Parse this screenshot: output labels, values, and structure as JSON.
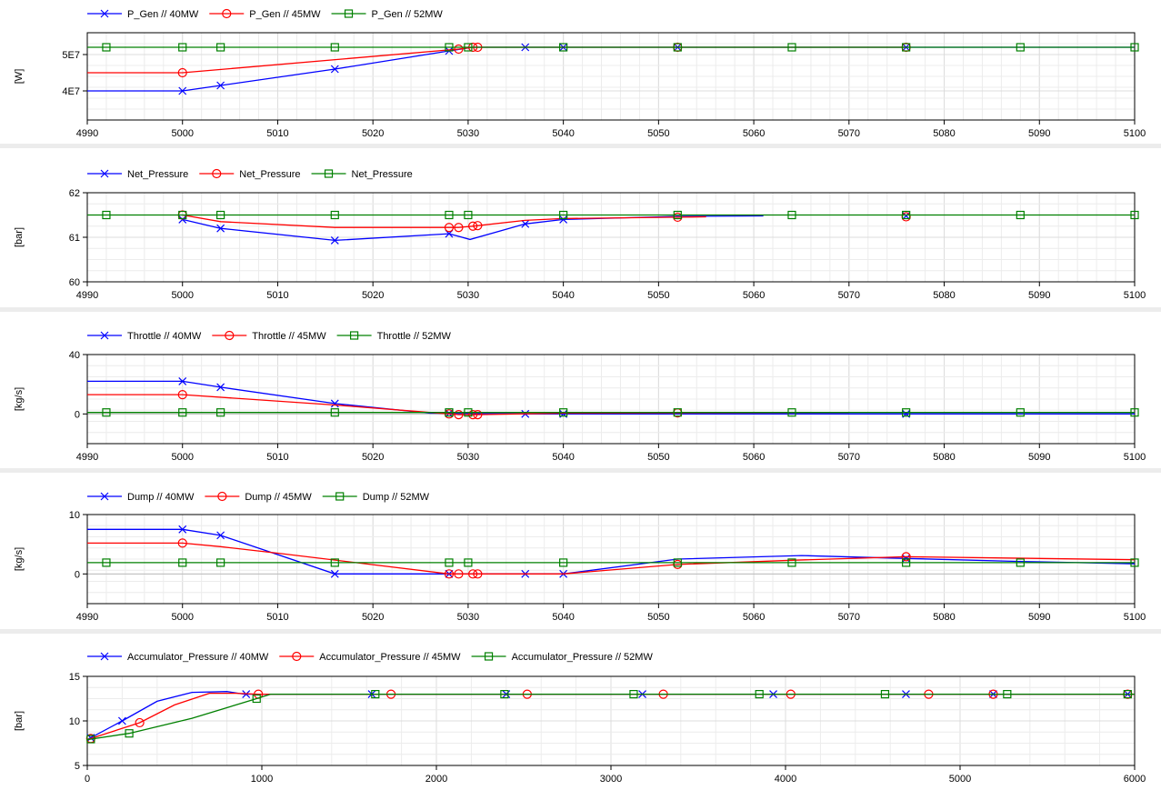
{
  "colors": {
    "blue": "#0000ff",
    "red": "#ff0000",
    "green": "#008000",
    "grid": "#dcdcdc"
  },
  "chart_data": [
    {
      "type": "line",
      "ylabel": "[W]",
      "xlim": [
        4990,
        5100
      ],
      "ylim": [
        32000000,
        56000000
      ],
      "x_ticks": [
        "4990",
        "5000",
        "5010",
        "5020",
        "5030",
        "5040",
        "5050",
        "5060",
        "5070",
        "5080",
        "5090",
        "5100"
      ],
      "y_ticks": [
        {
          "value": 40000000,
          "label": "4E7"
        },
        {
          "value": 50000000,
          "label": "5E7"
        }
      ],
      "legend": [
        "P_Gen // 40MW",
        "P_Gen // 45MW",
        "P_Gen // 52MW"
      ],
      "series": [
        {
          "name": "P_Gen // 40MW",
          "color": "blue",
          "marker": "x",
          "x": [
            4990,
            5000,
            5004,
            5016,
            5028,
            5030.5,
            5036,
            5040,
            5052,
            5076,
            5100
          ],
          "y": [
            40000000,
            40000000,
            41500000,
            46000000,
            51000000,
            52000000,
            52000000,
            52000000,
            52000000,
            52000000,
            52000000
          ],
          "markers": [
            5000,
            5004,
            5016,
            5028,
            5036,
            5040,
            5052,
            5076
          ]
        },
        {
          "name": "P_Gen // 45MW",
          "color": "red",
          "marker": "o",
          "x": [
            4990,
            5000,
            5029,
            5030.5,
            5031,
            5052,
            5076
          ],
          "y": [
            45000000,
            45000000,
            51500000,
            52000000,
            52000000,
            52000000,
            52000000
          ],
          "markers": [
            5000,
            5029,
            5030.5,
            5031,
            5052,
            5076
          ]
        },
        {
          "name": "P_Gen // 52MW",
          "color": "green",
          "marker": "square",
          "x": [
            4990,
            5100
          ],
          "y": [
            52000000,
            52000000
          ],
          "markers": [
            4992,
            5000,
            5004,
            5016,
            5028,
            5030,
            5040,
            5052,
            5064,
            5076,
            5088,
            5100
          ]
        }
      ]
    },
    {
      "type": "line",
      "ylabel": "[bar]",
      "xlim": [
        4990,
        5100
      ],
      "ylim": [
        60,
        62
      ],
      "x_ticks": [
        "4990",
        "5000",
        "5010",
        "5020",
        "5030",
        "5040",
        "5050",
        "5060",
        "5070",
        "5080",
        "5090",
        "5100"
      ],
      "y_ticks": [
        {
          "value": 60,
          "label": "60"
        },
        {
          "value": 61,
          "label": "61"
        },
        {
          "value": 62,
          "label": "62"
        }
      ],
      "legend": [
        "Net_Pressure",
        "Net_Pressure",
        "Net_Pressure"
      ],
      "series": [
        {
          "name": "Net_Pressure",
          "color": "blue",
          "marker": "x",
          "x": [
            5000,
            5004,
            5016,
            5028,
            5030.2,
            5036,
            5040,
            5052,
            5061
          ],
          "y": [
            61.4,
            61.2,
            60.93,
            61.08,
            60.95,
            61.3,
            61.4,
            61.47,
            61.48
          ],
          "markers": [
            5000,
            5004,
            5016,
            5028,
            5036,
            5040,
            5076
          ]
        },
        {
          "name": "Net_Pressure",
          "color": "red",
          "marker": "o",
          "x": [
            5000,
            5004,
            5016,
            5029,
            5030.5,
            5036,
            5040,
            5052,
            5055
          ],
          "y": [
            61.5,
            61.35,
            61.22,
            61.22,
            61.25,
            61.38,
            61.42,
            61.45,
            61.46
          ],
          "markers": [
            5000,
            5028,
            5029,
            5030.5,
            5031,
            5052,
            5076
          ]
        },
        {
          "name": "Net_Pressure",
          "color": "green",
          "marker": "square",
          "x": [
            4990,
            5100
          ],
          "y": [
            61.5,
            61.5
          ],
          "markers": [
            4992,
            5000,
            5004,
            5016,
            5028,
            5030,
            5040,
            5052,
            5064,
            5076,
            5088,
            5100
          ]
        }
      ]
    },
    {
      "type": "line",
      "ylabel": "[kg/s]",
      "xlim": [
        4990,
        5100
      ],
      "ylim": [
        -20,
        40
      ],
      "x_ticks": [
        "4990",
        "5000",
        "5010",
        "5020",
        "5030",
        "5040",
        "5050",
        "5060",
        "5070",
        "5080",
        "5090",
        "5100"
      ],
      "y_ticks": [
        {
          "value": 0,
          "label": "0"
        },
        {
          "value": 40,
          "label": "40"
        }
      ],
      "legend": [
        "Throttle // 40MW",
        "Throttle // 45MW",
        "Throttle // 52MW"
      ],
      "series": [
        {
          "name": "Throttle // 40MW",
          "color": "blue",
          "marker": "x",
          "x": [
            4990,
            5000,
            5004,
            5016,
            5026,
            5036,
            5100
          ],
          "y": [
            22,
            22,
            18,
            7,
            0.5,
            0,
            0
          ],
          "markers": [
            5000,
            5004,
            5016,
            5028,
            5036,
            5040,
            5076
          ]
        },
        {
          "name": "Throttle // 45MW",
          "color": "red",
          "marker": "o",
          "x": [
            4990,
            5000,
            5016,
            5026,
            5029,
            5031,
            5040,
            5070
          ],
          "y": [
            13,
            13,
            6,
            1,
            -0.5,
            -0.5,
            0.5,
            1
          ],
          "markers": [
            5000,
            5028,
            5029,
            5030.5,
            5031,
            5052
          ]
        },
        {
          "name": "Throttle // 52MW",
          "color": "green",
          "marker": "square",
          "x": [
            4990,
            5100
          ],
          "y": [
            1,
            1
          ],
          "markers": [
            4992,
            5000,
            5004,
            5016,
            5028,
            5030,
            5040,
            5052,
            5064,
            5076,
            5088,
            5100
          ]
        }
      ]
    },
    {
      "type": "line",
      "ylabel": "[kg/s]",
      "xlim": [
        4990,
        5100
      ],
      "ylim": [
        -5,
        10
      ],
      "x_ticks": [
        "4990",
        "5000",
        "5010",
        "5020",
        "5030",
        "5040",
        "5050",
        "5060",
        "5070",
        "5080",
        "5090",
        "5100"
      ],
      "y_ticks": [
        {
          "value": 0,
          "label": "0"
        },
        {
          "value": 10,
          "label": "10"
        }
      ],
      "legend": [
        "Dump // 40MW",
        "Dump // 45MW",
        "Dump // 52MW"
      ],
      "series": [
        {
          "name": "Dump // 40MW",
          "color": "blue",
          "marker": "x",
          "x": [
            4990,
            5000,
            5004,
            5016,
            5028,
            5040,
            5052,
            5065,
            5076,
            5088,
            5100
          ],
          "y": [
            7.5,
            7.5,
            6.5,
            0,
            0,
            0,
            2.5,
            3.1,
            2.6,
            2.1,
            1.7
          ],
          "markers": [
            5000,
            5004,
            5016,
            5028,
            5036,
            5040,
            5076
          ]
        },
        {
          "name": "Dump // 45MW",
          "color": "red",
          "marker": "o",
          "x": [
            4990,
            5000,
            5004,
            5010,
            5028,
            5040,
            5052,
            5064,
            5076,
            5100
          ],
          "y": [
            5.2,
            5.2,
            4.6,
            3.5,
            0,
            0,
            1.6,
            2.3,
            2.9,
            2.4
          ],
          "markers": [
            5000,
            5028,
            5029,
            5030.5,
            5031,
            5052,
            5076
          ]
        },
        {
          "name": "Dump // 52MW",
          "color": "green",
          "marker": "square",
          "x": [
            4990,
            5100
          ],
          "y": [
            1.9,
            1.9
          ],
          "markers": [
            4992,
            5000,
            5004,
            5016,
            5028,
            5030,
            5040,
            5052,
            5064,
            5076,
            5088,
            5100
          ]
        }
      ]
    },
    {
      "type": "line",
      "ylabel": "[bar]",
      "xlim": [
        0,
        6000
      ],
      "ylim": [
        5,
        15
      ],
      "x_ticks": [
        "0",
        "1000",
        "2000",
        "3000",
        "4000",
        "5000",
        "6000"
      ],
      "x_tick_step_minor": 200,
      "y_ticks": [
        {
          "value": 5,
          "label": "5"
        },
        {
          "value": 10,
          "label": "10"
        },
        {
          "value": 15,
          "label": "15"
        }
      ],
      "legend": [
        "Accumulator_Pressure // 40MW",
        "Accumulator_Pressure // 45MW",
        "Accumulator_Pressure // 52MW"
      ],
      "series": [
        {
          "name": "Accumulator_Pressure // 40MW",
          "color": "blue",
          "marker": "x",
          "x": [
            0,
            200,
            400,
            600,
            800,
            900,
            1050,
            6000
          ],
          "y": [
            7.9,
            10,
            12.2,
            13.2,
            13.3,
            13,
            13,
            13
          ],
          "markers": [
            20,
            200,
            910,
            1630,
            2400,
            3180,
            3930,
            4690,
            5190,
            5960
          ]
        },
        {
          "name": "Accumulator_Pressure // 45MW",
          "color": "red",
          "marker": "o",
          "x": [
            0,
            300,
            500,
            700,
            850,
            980,
            1050,
            6000
          ],
          "y": [
            7.9,
            9.8,
            11.8,
            13.1,
            13.1,
            13,
            13,
            13
          ],
          "markers": [
            20,
            300,
            980,
            1740,
            2520,
            3300,
            4030,
            4820,
            5190,
            5960
          ]
        },
        {
          "name": "Accumulator_Pressure // 52MW",
          "color": "green",
          "marker": "square",
          "x": [
            0,
            240,
            600,
            970,
            1050,
            6000
          ],
          "y": [
            7.9,
            8.6,
            10.3,
            12.5,
            13,
            13
          ],
          "markers": [
            20,
            240,
            970,
            1650,
            2390,
            3130,
            3850,
            4570,
            5270,
            5960
          ]
        }
      ]
    }
  ]
}
